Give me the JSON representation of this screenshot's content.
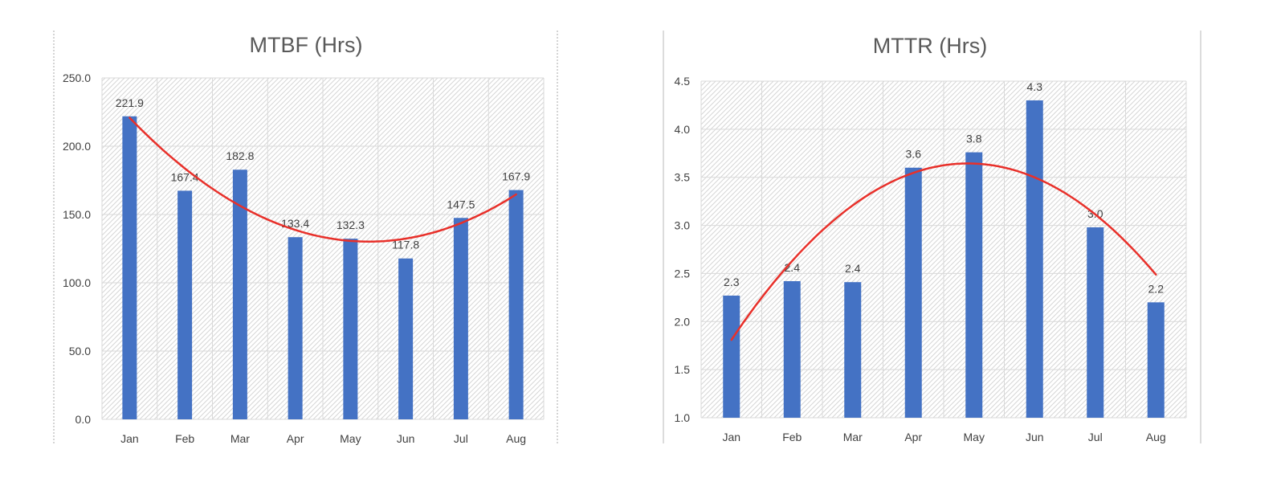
{
  "chart_data": [
    {
      "type": "bar",
      "title": "MTBF (Hrs)",
      "xlabel": "",
      "ylabel": "",
      "categories": [
        "Jan",
        "Feb",
        "Mar",
        "Apr",
        "May",
        "Jun",
        "Jul",
        "Aug"
      ],
      "values": [
        221.9,
        167.4,
        182.8,
        133.4,
        132.3,
        117.8,
        147.5,
        167.9
      ],
      "data_labels": [
        "221.9",
        "167.4",
        "182.8",
        "133.4",
        "132.3",
        "117.8",
        "147.5",
        "167.9"
      ],
      "ylim": [
        0,
        250
      ],
      "yticks": [
        0,
        50,
        100,
        150,
        200,
        250
      ],
      "ytick_labels": [
        "0.0",
        "50.0",
        "100.0",
        "150.0",
        "200.0",
        "250.0"
      ],
      "trendline": {
        "type": "polynomial",
        "order": 2
      },
      "grid": true,
      "legend": "none",
      "colors": {
        "bars": "#4472c4",
        "trendline": "#e8302a"
      }
    },
    {
      "type": "bar",
      "title": "MTTR (Hrs)",
      "xlabel": "",
      "ylabel": "",
      "categories": [
        "Jan",
        "Feb",
        "Mar",
        "Apr",
        "May",
        "Jun",
        "Jul",
        "Aug"
      ],
      "values": [
        2.27,
        2.42,
        2.41,
        3.6,
        3.76,
        4.3,
        2.98,
        2.2
      ],
      "data_labels": [
        "2.3",
        "2.4",
        "2.4",
        "3.6",
        "3.8",
        "4.3",
        "3.0",
        "2.2"
      ],
      "ylim": [
        1.0,
        4.5
      ],
      "yticks": [
        1.0,
        1.5,
        2.0,
        2.5,
        3.0,
        3.5,
        4.0,
        4.5
      ],
      "ytick_labels": [
        "1.0",
        "1.5",
        "2.0",
        "2.5",
        "3.0",
        "3.5",
        "4.0",
        "4.5"
      ],
      "trendline": {
        "type": "polynomial",
        "order": 2
      },
      "grid": true,
      "legend": "none",
      "colors": {
        "bars": "#4472c4",
        "trendline": "#e8302a"
      }
    }
  ]
}
